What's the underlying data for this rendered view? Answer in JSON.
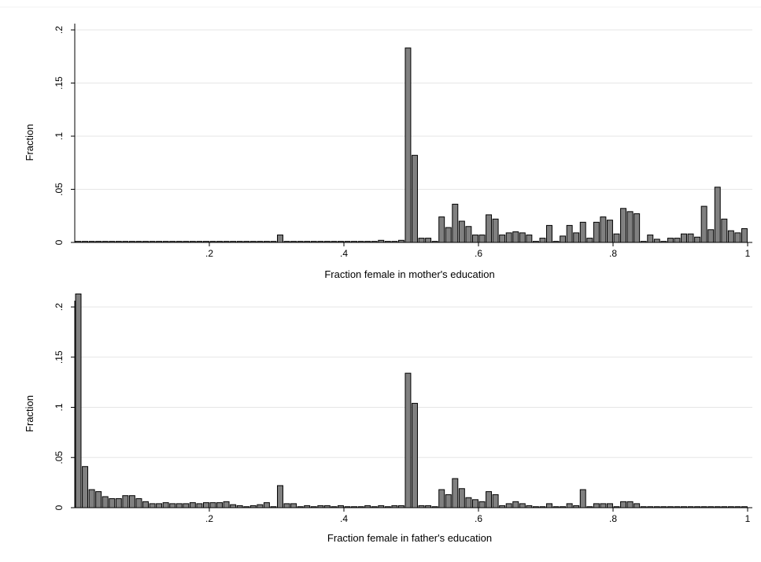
{
  "chart_data": [
    {
      "type": "bar",
      "xlabel": "Fraction female in mother's education",
      "ylabel": "Fraction",
      "xlim": [
        0,
        1
      ],
      "ylim": [
        0,
        0.2
      ],
      "xticks": [
        ".2",
        ".4",
        ".6",
        ".8",
        "1"
      ],
      "yticks": [
        "0",
        ".05",
        ".1",
        ".15",
        ".2"
      ],
      "grid": true,
      "bin_width": 0.01,
      "bars": [
        {
          "x": 0.0,
          "y": 0.001
        },
        {
          "x": 0.01,
          "y": 0.001
        },
        {
          "x": 0.02,
          "y": 0.001
        },
        {
          "x": 0.03,
          "y": 0.001
        },
        {
          "x": 0.04,
          "y": 0.001
        },
        {
          "x": 0.05,
          "y": 0.001
        },
        {
          "x": 0.06,
          "y": 0.001
        },
        {
          "x": 0.07,
          "y": 0.001
        },
        {
          "x": 0.08,
          "y": 0.001
        },
        {
          "x": 0.09,
          "y": 0.001
        },
        {
          "x": 0.1,
          "y": 0.001
        },
        {
          "x": 0.11,
          "y": 0.001
        },
        {
          "x": 0.12,
          "y": 0.001
        },
        {
          "x": 0.13,
          "y": 0.001
        },
        {
          "x": 0.14,
          "y": 0.001
        },
        {
          "x": 0.15,
          "y": 0.001
        },
        {
          "x": 0.16,
          "y": 0.001
        },
        {
          "x": 0.17,
          "y": 0.001
        },
        {
          "x": 0.18,
          "y": 0.001
        },
        {
          "x": 0.19,
          "y": 0.001
        },
        {
          "x": 0.2,
          "y": 0.001
        },
        {
          "x": 0.21,
          "y": 0.001
        },
        {
          "x": 0.22,
          "y": 0.001
        },
        {
          "x": 0.23,
          "y": 0.001
        },
        {
          "x": 0.24,
          "y": 0.001
        },
        {
          "x": 0.25,
          "y": 0.001
        },
        {
          "x": 0.26,
          "y": 0.001
        },
        {
          "x": 0.27,
          "y": 0.001
        },
        {
          "x": 0.28,
          "y": 0.001
        },
        {
          "x": 0.29,
          "y": 0.001
        },
        {
          "x": 0.3,
          "y": 0.007
        },
        {
          "x": 0.31,
          "y": 0.001
        },
        {
          "x": 0.32,
          "y": 0.001
        },
        {
          "x": 0.33,
          "y": 0.001
        },
        {
          "x": 0.34,
          "y": 0.001
        },
        {
          "x": 0.35,
          "y": 0.001
        },
        {
          "x": 0.36,
          "y": 0.001
        },
        {
          "x": 0.37,
          "y": 0.001
        },
        {
          "x": 0.38,
          "y": 0.001
        },
        {
          "x": 0.39,
          "y": 0.001
        },
        {
          "x": 0.4,
          "y": 0.001
        },
        {
          "x": 0.41,
          "y": 0.001
        },
        {
          "x": 0.42,
          "y": 0.001
        },
        {
          "x": 0.43,
          "y": 0.001
        },
        {
          "x": 0.44,
          "y": 0.001
        },
        {
          "x": 0.45,
          "y": 0.002
        },
        {
          "x": 0.46,
          "y": 0.001
        },
        {
          "x": 0.47,
          "y": 0.001
        },
        {
          "x": 0.48,
          "y": 0.002
        },
        {
          "x": 0.49,
          "y": 0.183
        },
        {
          "x": 0.5,
          "y": 0.082
        },
        {
          "x": 0.51,
          "y": 0.004
        },
        {
          "x": 0.52,
          "y": 0.004
        },
        {
          "x": 0.53,
          "y": 0.001
        },
        {
          "x": 0.54,
          "y": 0.024
        },
        {
          "x": 0.55,
          "y": 0.014
        },
        {
          "x": 0.56,
          "y": 0.036
        },
        {
          "x": 0.57,
          "y": 0.02
        },
        {
          "x": 0.58,
          "y": 0.015
        },
        {
          "x": 0.59,
          "y": 0.007
        },
        {
          "x": 0.6,
          "y": 0.007
        },
        {
          "x": 0.61,
          "y": 0.026
        },
        {
          "x": 0.62,
          "y": 0.022
        },
        {
          "x": 0.63,
          "y": 0.007
        },
        {
          "x": 0.64,
          "y": 0.009
        },
        {
          "x": 0.65,
          "y": 0.01
        },
        {
          "x": 0.66,
          "y": 0.009
        },
        {
          "x": 0.67,
          "y": 0.007
        },
        {
          "x": 0.68,
          "y": 0.001
        },
        {
          "x": 0.69,
          "y": 0.004
        },
        {
          "x": 0.7,
          "y": 0.016
        },
        {
          "x": 0.71,
          "y": 0.001
        },
        {
          "x": 0.72,
          "y": 0.006
        },
        {
          "x": 0.73,
          "y": 0.016
        },
        {
          "x": 0.74,
          "y": 0.009
        },
        {
          "x": 0.75,
          "y": 0.019
        },
        {
          "x": 0.76,
          "y": 0.004
        },
        {
          "x": 0.77,
          "y": 0.019
        },
        {
          "x": 0.78,
          "y": 0.024
        },
        {
          "x": 0.79,
          "y": 0.021
        },
        {
          "x": 0.8,
          "y": 0.008
        },
        {
          "x": 0.81,
          "y": 0.032
        },
        {
          "x": 0.82,
          "y": 0.029
        },
        {
          "x": 0.83,
          "y": 0.027
        },
        {
          "x": 0.84,
          "y": 0.001
        },
        {
          "x": 0.85,
          "y": 0.007
        },
        {
          "x": 0.86,
          "y": 0.003
        },
        {
          "x": 0.87,
          "y": 0.001
        },
        {
          "x": 0.88,
          "y": 0.004
        },
        {
          "x": 0.89,
          "y": 0.004
        },
        {
          "x": 0.9,
          "y": 0.008
        },
        {
          "x": 0.91,
          "y": 0.008
        },
        {
          "x": 0.92,
          "y": 0.005
        },
        {
          "x": 0.93,
          "y": 0.034
        },
        {
          "x": 0.94,
          "y": 0.012
        },
        {
          "x": 0.95,
          "y": 0.052
        },
        {
          "x": 0.96,
          "y": 0.022
        },
        {
          "x": 0.97,
          "y": 0.011
        },
        {
          "x": 0.98,
          "y": 0.009
        },
        {
          "x": 0.99,
          "y": 0.013
        }
      ]
    },
    {
      "type": "bar",
      "xlabel": "Fraction female in father's education",
      "ylabel": "Fraction",
      "xlim": [
        0,
        1
      ],
      "ylim": [
        0,
        0.2
      ],
      "xticks": [
        ".2",
        ".4",
        ".6",
        ".8",
        "1"
      ],
      "yticks": [
        "0",
        ".05",
        ".1",
        ".15",
        ".2"
      ],
      "grid": true,
      "bin_width": 0.01,
      "bars": [
        {
          "x": 0.0,
          "y": 0.213
        },
        {
          "x": 0.01,
          "y": 0.041
        },
        {
          "x": 0.02,
          "y": 0.018
        },
        {
          "x": 0.03,
          "y": 0.016
        },
        {
          "x": 0.04,
          "y": 0.011
        },
        {
          "x": 0.05,
          "y": 0.009
        },
        {
          "x": 0.06,
          "y": 0.009
        },
        {
          "x": 0.07,
          "y": 0.012
        },
        {
          "x": 0.08,
          "y": 0.012
        },
        {
          "x": 0.09,
          "y": 0.009
        },
        {
          "x": 0.1,
          "y": 0.006
        },
        {
          "x": 0.11,
          "y": 0.004
        },
        {
          "x": 0.12,
          "y": 0.004
        },
        {
          "x": 0.13,
          "y": 0.005
        },
        {
          "x": 0.14,
          "y": 0.004
        },
        {
          "x": 0.15,
          "y": 0.004
        },
        {
          "x": 0.16,
          "y": 0.004
        },
        {
          "x": 0.17,
          "y": 0.005
        },
        {
          "x": 0.18,
          "y": 0.004
        },
        {
          "x": 0.19,
          "y": 0.005
        },
        {
          "x": 0.2,
          "y": 0.005
        },
        {
          "x": 0.21,
          "y": 0.005
        },
        {
          "x": 0.22,
          "y": 0.006
        },
        {
          "x": 0.23,
          "y": 0.003
        },
        {
          "x": 0.24,
          "y": 0.002
        },
        {
          "x": 0.25,
          "y": 0.001
        },
        {
          "x": 0.26,
          "y": 0.002
        },
        {
          "x": 0.27,
          "y": 0.003
        },
        {
          "x": 0.28,
          "y": 0.005
        },
        {
          "x": 0.29,
          "y": 0.001
        },
        {
          "x": 0.3,
          "y": 0.022
        },
        {
          "x": 0.31,
          "y": 0.004
        },
        {
          "x": 0.32,
          "y": 0.004
        },
        {
          "x": 0.33,
          "y": 0.001
        },
        {
          "x": 0.34,
          "y": 0.002
        },
        {
          "x": 0.35,
          "y": 0.001
        },
        {
          "x": 0.36,
          "y": 0.002
        },
        {
          "x": 0.37,
          "y": 0.002
        },
        {
          "x": 0.38,
          "y": 0.001
        },
        {
          "x": 0.39,
          "y": 0.002
        },
        {
          "x": 0.4,
          "y": 0.001
        },
        {
          "x": 0.41,
          "y": 0.001
        },
        {
          "x": 0.42,
          "y": 0.001
        },
        {
          "x": 0.43,
          "y": 0.002
        },
        {
          "x": 0.44,
          "y": 0.001
        },
        {
          "x": 0.45,
          "y": 0.002
        },
        {
          "x": 0.46,
          "y": 0.001
        },
        {
          "x": 0.47,
          "y": 0.002
        },
        {
          "x": 0.48,
          "y": 0.002
        },
        {
          "x": 0.49,
          "y": 0.134
        },
        {
          "x": 0.5,
          "y": 0.104
        },
        {
          "x": 0.51,
          "y": 0.002
        },
        {
          "x": 0.52,
          "y": 0.002
        },
        {
          "x": 0.53,
          "y": 0.001
        },
        {
          "x": 0.54,
          "y": 0.018
        },
        {
          "x": 0.55,
          "y": 0.013
        },
        {
          "x": 0.56,
          "y": 0.029
        },
        {
          "x": 0.57,
          "y": 0.019
        },
        {
          "x": 0.58,
          "y": 0.01
        },
        {
          "x": 0.59,
          "y": 0.008
        },
        {
          "x": 0.6,
          "y": 0.006
        },
        {
          "x": 0.61,
          "y": 0.016
        },
        {
          "x": 0.62,
          "y": 0.013
        },
        {
          "x": 0.63,
          "y": 0.002
        },
        {
          "x": 0.64,
          "y": 0.004
        },
        {
          "x": 0.65,
          "y": 0.006
        },
        {
          "x": 0.66,
          "y": 0.004
        },
        {
          "x": 0.67,
          "y": 0.002
        },
        {
          "x": 0.68,
          "y": 0.001
        },
        {
          "x": 0.69,
          "y": 0.001
        },
        {
          "x": 0.7,
          "y": 0.004
        },
        {
          "x": 0.71,
          "y": 0.001
        },
        {
          "x": 0.72,
          "y": 0.001
        },
        {
          "x": 0.73,
          "y": 0.004
        },
        {
          "x": 0.74,
          "y": 0.002
        },
        {
          "x": 0.75,
          "y": 0.018
        },
        {
          "x": 0.76,
          "y": 0.001
        },
        {
          "x": 0.77,
          "y": 0.004
        },
        {
          "x": 0.78,
          "y": 0.004
        },
        {
          "x": 0.79,
          "y": 0.004
        },
        {
          "x": 0.8,
          "y": 0.001
        },
        {
          "x": 0.81,
          "y": 0.006
        },
        {
          "x": 0.82,
          "y": 0.006
        },
        {
          "x": 0.83,
          "y": 0.004
        },
        {
          "x": 0.84,
          "y": 0.001
        },
        {
          "x": 0.85,
          "y": 0.001
        },
        {
          "x": 0.86,
          "y": 0.001
        },
        {
          "x": 0.87,
          "y": 0.001
        },
        {
          "x": 0.88,
          "y": 0.001
        },
        {
          "x": 0.89,
          "y": 0.001
        },
        {
          "x": 0.9,
          "y": 0.001
        },
        {
          "x": 0.91,
          "y": 0.001
        },
        {
          "x": 0.92,
          "y": 0.001
        },
        {
          "x": 0.93,
          "y": 0.001
        },
        {
          "x": 0.94,
          "y": 0.001
        },
        {
          "x": 0.95,
          "y": 0.001
        },
        {
          "x": 0.96,
          "y": 0.001
        },
        {
          "x": 0.97,
          "y": 0.001
        },
        {
          "x": 0.98,
          "y": 0.001
        },
        {
          "x": 0.99,
          "y": 0.001
        }
      ]
    }
  ]
}
